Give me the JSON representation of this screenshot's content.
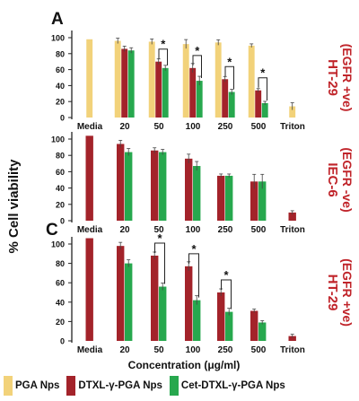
{
  "y_axis_label": "% Cell viability",
  "x_axis_label": "Concentration  (μg/ml)",
  "colors": {
    "pga": "#f2d27a",
    "dtxl": "#a3232a",
    "cet": "#27a84e",
    "side_label": "#c0242a"
  },
  "legend": [
    {
      "label": "PGA Nps",
      "color_key": "pga"
    },
    {
      "label": "DTXL-γ-PGA Nps",
      "color_key": "dtxl"
    },
    {
      "label": "Cet-DTXL-γ-PGA Nps",
      "color_key": "cet"
    }
  ],
  "chart_data": [
    {
      "type": "bar",
      "panel_letter": "A",
      "side_label": "HT-29",
      "side_sublabel": "(EGFR +ve)",
      "categories": [
        "Media",
        "20",
        "50",
        "100",
        "250",
        "500",
        "Triton"
      ],
      "ylim": [
        0,
        100
      ],
      "yticks": [
        0,
        20,
        40,
        60,
        80,
        100
      ],
      "series": [
        {
          "name": "PGA Nps",
          "color_key": "pga",
          "values": [
            98,
            96,
            95,
            92,
            94,
            90,
            14
          ]
        },
        {
          "name": "DTXL-γ-PGA Nps",
          "color_key": "dtxl",
          "values": [
            null,
            86,
            70,
            62,
            48,
            34,
            null
          ]
        },
        {
          "name": "Cet-DTXL-γ-PGA Nps",
          "color_key": "cet",
          "values": [
            null,
            84,
            62,
            46,
            32,
            18,
            null
          ]
        }
      ],
      "significance": [
        {
          "category": "50",
          "label": "*"
        },
        {
          "category": "100",
          "label": "*"
        },
        {
          "category": "250",
          "label": "*"
        },
        {
          "category": "500",
          "label": "*"
        }
      ]
    },
    {
      "type": "bar",
      "panel_letter": "",
      "side_label": "IEC-6",
      "side_sublabel": "(EGFR -ve)",
      "categories": [
        "Media",
        "20",
        "50",
        "100",
        "250",
        "500",
        "Triton"
      ],
      "ylim": [
        0,
        100
      ],
      "yticks": [
        0,
        20,
        40,
        60,
        80,
        100
      ],
      "series": [
        {
          "name": "DTXL-γ-PGA Nps",
          "color_key": "dtxl",
          "values": [
            104,
            94,
            86,
            76,
            55,
            48,
            10
          ]
        },
        {
          "name": "Cet-DTXL-γ-PGA Nps",
          "color_key": "cet",
          "values": [
            null,
            84,
            84,
            67,
            55,
            48,
            null
          ]
        }
      ],
      "significance": []
    },
    {
      "type": "bar",
      "panel_letter": "C",
      "side_label": "HT-29",
      "side_sublabel": "(EGFR +ve)",
      "categories": [
        "Media",
        "20",
        "50",
        "100",
        "250",
        "500",
        "Triton"
      ],
      "ylim": [
        0,
        100
      ],
      "yticks": [
        0,
        20,
        40,
        60,
        80,
        100
      ],
      "series": [
        {
          "name": "DTXL-γ-PGA Nps",
          "color_key": "dtxl",
          "values": [
            106,
            98,
            88,
            77,
            50,
            31,
            5
          ]
        },
        {
          "name": "Cet-DTXL-γ-PGA Nps",
          "color_key": "cet",
          "values": [
            null,
            80,
            56,
            42,
            30,
            19,
            null
          ]
        }
      ],
      "significance": [
        {
          "category": "50",
          "label": "*"
        },
        {
          "category": "100",
          "label": "*"
        },
        {
          "category": "250",
          "label": "*"
        }
      ]
    }
  ]
}
